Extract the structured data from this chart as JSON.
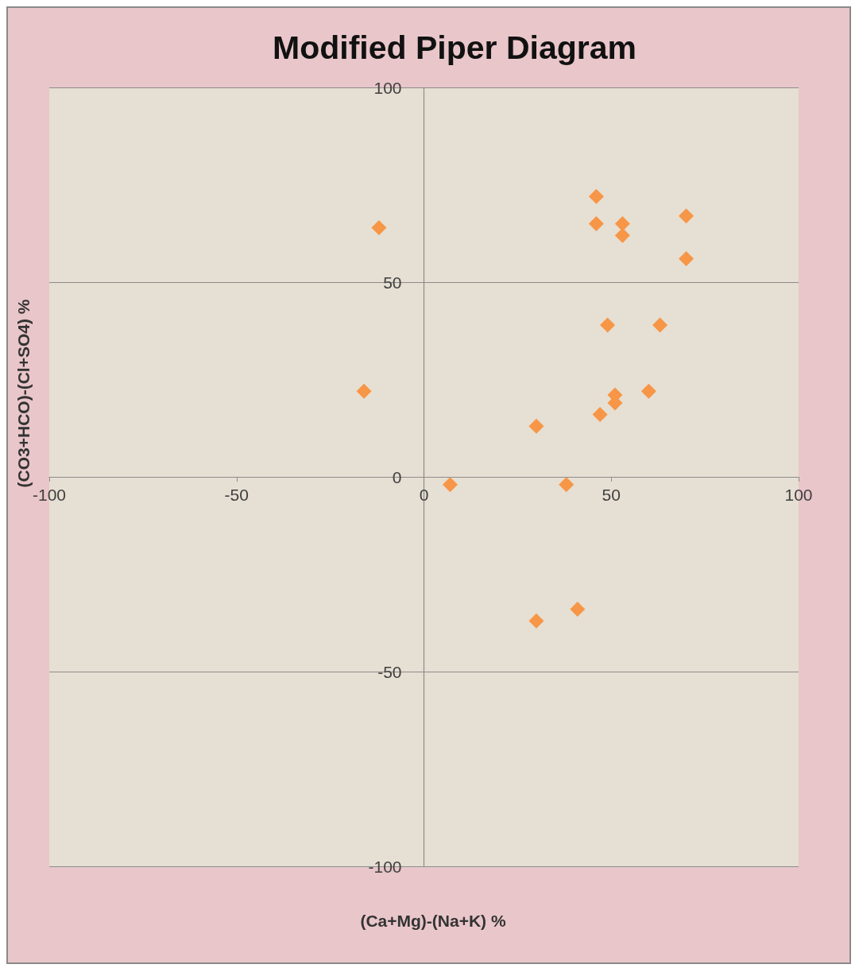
{
  "chart_data": {
    "type": "scatter",
    "title": "Modified Piper Diagram",
    "xlabel": "(Ca+Mg)-(Na+K) %",
    "ylabel": "(CO3+HCO)-(Cl+SO4) %",
    "x": [
      -12,
      -16,
      46,
      46,
      53,
      53,
      70,
      70,
      49,
      63,
      51,
      51,
      60,
      47,
      30,
      7,
      38,
      30,
      41
    ],
    "values": [
      64,
      22,
      72,
      65,
      65,
      62,
      67,
      56,
      39,
      39,
      21,
      19,
      22,
      16,
      13,
      -2,
      -2,
      -37,
      -34
    ],
    "color": "#f79646",
    "marker": "diamond",
    "xlim": [
      -100,
      100
    ],
    "ylim": [
      -100,
      100
    ],
    "xticks": [
      -100,
      -50,
      0,
      50,
      100
    ],
    "yticks": [
      -100,
      -50,
      0,
      50,
      100
    ],
    "grid": "y"
  }
}
